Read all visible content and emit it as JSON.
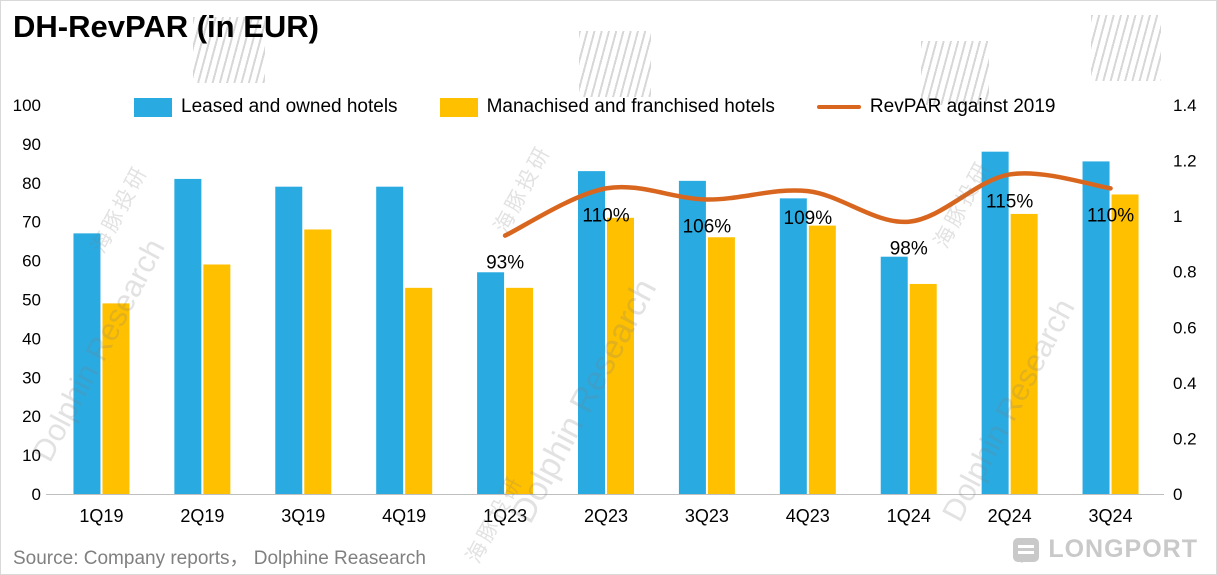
{
  "title": "DH-RevPAR (in EUR)",
  "source": "Source:  Company reports， Dolphine Reasearch",
  "logo": "LONGPORT",
  "watermark": {
    "en": "Dolphin Research",
    "zh": "海豚投研"
  },
  "colors": {
    "blue": "#29ABE2",
    "yellow": "#FFC000",
    "orange": "#D9661E",
    "axis_line": "#BFBFBF",
    "label_text": "#000000",
    "muted_text": "#808080"
  },
  "chart_data": {
    "type": "bar+line",
    "title": "DH-RevPAR (in EUR)",
    "categories": [
      "1Q19",
      "2Q19",
      "3Q19",
      "4Q19",
      "1Q23",
      "2Q23",
      "3Q23",
      "4Q23",
      "1Q24",
      "2Q24",
      "3Q24"
    ],
    "series": [
      {
        "name": "Leased and owned hotels",
        "type": "bar",
        "axis": "left",
        "color": "#29ABE2",
        "values": [
          67,
          81,
          79,
          79,
          57,
          83,
          80.5,
          76,
          61,
          88,
          85.5
        ]
      },
      {
        "name": "Manachised and franchised hotels",
        "type": "bar",
        "axis": "left",
        "color": "#FFC000",
        "values": [
          49,
          59,
          68,
          53,
          53,
          71,
          66,
          69,
          54,
          72,
          77
        ]
      },
      {
        "name": "RevPAR against 2019",
        "type": "line",
        "axis": "right",
        "color": "#D9661E",
        "values": [
          null,
          null,
          null,
          null,
          0.93,
          1.1,
          1.06,
          1.09,
          0.98,
          1.15,
          1.1
        ],
        "point_labels": [
          null,
          null,
          null,
          null,
          "93%",
          "110%",
          "106%",
          "109%",
          "98%",
          "115%",
          "110%"
        ]
      }
    ],
    "left_axis": {
      "min": 0,
      "max": 100,
      "step": 10,
      "ticks": [
        "0",
        "10",
        "20",
        "30",
        "40",
        "50",
        "60",
        "70",
        "80",
        "90",
        "100"
      ]
    },
    "right_axis": {
      "min": 0,
      "max": 1.4,
      "step": 0.2,
      "ticks": [
        "0",
        "0.2",
        "0.4",
        "0.6",
        "0.8",
        "1",
        "1.2",
        "1.4"
      ]
    },
    "legend_position": "top",
    "gridlines": false
  }
}
